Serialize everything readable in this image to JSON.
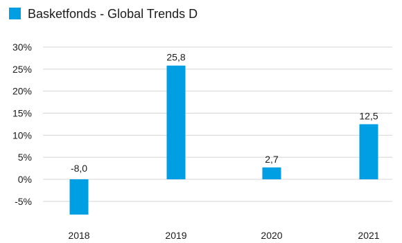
{
  "chart_data": {
    "type": "bar",
    "title": "",
    "xlabel": "",
    "ylabel": "",
    "categories": [
      "2018",
      "2019",
      "2020",
      "2021"
    ],
    "series": [
      {
        "name": "Basketfonds - Global Trends D",
        "values": [
          -8.0,
          25.8,
          2.7,
          12.5
        ],
        "value_labels": [
          "-8,0",
          "25,8",
          "2,7",
          "12,5"
        ],
        "color": "#009fe3"
      }
    ],
    "y_ticks": [
      30,
      25,
      20,
      15,
      10,
      5,
      0,
      -5
    ],
    "y_tick_labels": [
      "30%",
      "25%",
      "20%",
      "15%",
      "10%",
      "5%",
      "0%",
      "-5%"
    ],
    "ylim": [
      -8,
      30
    ],
    "grid": true,
    "legend_position": "top-left"
  }
}
